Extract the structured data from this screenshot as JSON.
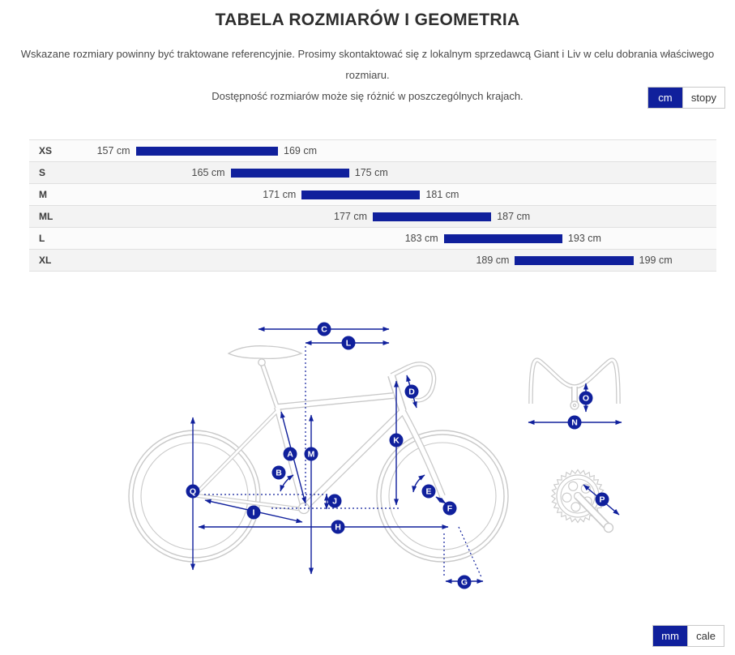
{
  "colors": {
    "accent_navy": "#10209c",
    "art_gray": "#c9c9c9",
    "row_light": "#fbfbfb",
    "row_dark": "#f3f3f3",
    "row_border": "#e0e0e0"
  },
  "header": {
    "title": "TABELA ROZMIARÓW I GEOMETRIA",
    "subtitle_line1": "Wskazane rozmiary powinny być traktowane referencyjnie. Prosimy skontaktować się z lokalnym sprzedawcą Giant i Liv w celu dobrania właściwego rozmiaru.",
    "subtitle_line2": "Dostępność rozmiarów może się różnić w poszczególnych krajach."
  },
  "unit_toggle_top": {
    "options": [
      {
        "label": "cm",
        "active": true
      },
      {
        "label": "stopy",
        "active": false
      }
    ]
  },
  "unit_toggle_bottom": {
    "options": [
      {
        "label": "mm",
        "active": true
      },
      {
        "label": "cale",
        "active": false
      }
    ]
  },
  "chart_data": {
    "type": "bar",
    "unit": "cm",
    "axis_range": [
      148,
      206
    ],
    "rows": [
      {
        "size": "XS",
        "min": 157,
        "max": 169,
        "min_label": "157 cm",
        "max_label": "169 cm"
      },
      {
        "size": "S",
        "min": 165,
        "max": 175,
        "min_label": "165 cm",
        "max_label": "175 cm"
      },
      {
        "size": "M",
        "min": 171,
        "max": 181,
        "min_label": "171 cm",
        "max_label": "181 cm"
      },
      {
        "size": "ML",
        "min": 177,
        "max": 187,
        "min_label": "177 cm",
        "max_label": "187 cm"
      },
      {
        "size": "L",
        "min": 183,
        "max": 193,
        "min_label": "183 cm",
        "max_label": "193 cm"
      },
      {
        "size": "XL",
        "min": 189,
        "max": 199,
        "min_label": "189 cm",
        "max_label": "199 cm"
      }
    ]
  },
  "geometry": {
    "badge_letters": [
      "A",
      "B",
      "C",
      "D",
      "E",
      "F",
      "G",
      "H",
      "I",
      "J",
      "K",
      "L",
      "M",
      "N",
      "O",
      "P",
      "Q"
    ]
  }
}
